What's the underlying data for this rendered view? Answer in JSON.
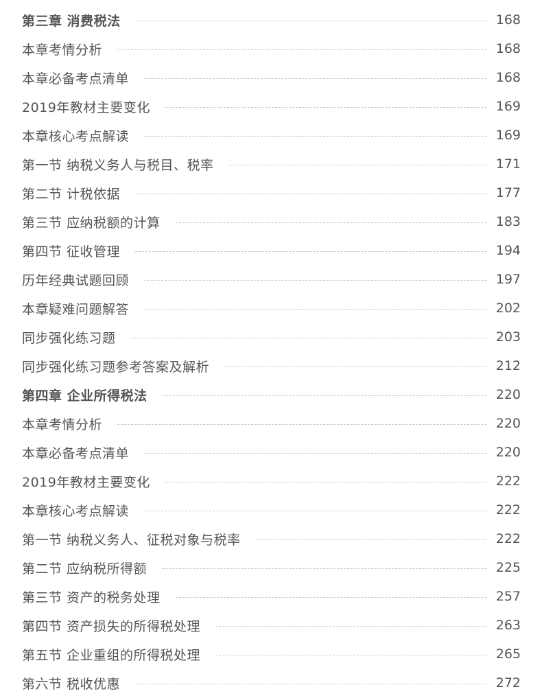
{
  "entries": [
    {
      "title": "第三章  消费税法",
      "page": "168",
      "chapter": true
    },
    {
      "title": "本章考情分析",
      "page": "168"
    },
    {
      "title": "本章必备考点清单",
      "page": "168"
    },
    {
      "title": "2019年教材主要变化",
      "page": "169"
    },
    {
      "title": "本章核心考点解读",
      "page": "169"
    },
    {
      "title": "第一节 纳税义务人与税目、税率",
      "page": "171"
    },
    {
      "title": "第二节 计税依据",
      "page": "177"
    },
    {
      "title": "第三节 应纳税额的计算",
      "page": "183"
    },
    {
      "title": "第四节 征收管理",
      "page": "194"
    },
    {
      "title": "历年经典试题回顾",
      "page": "197"
    },
    {
      "title": "本章疑难问题解答",
      "page": "202"
    },
    {
      "title": "同步强化练习题",
      "page": "203"
    },
    {
      "title": "同步强化练习题参考答案及解析",
      "page": "212"
    },
    {
      "title": "第四章  企业所得税法",
      "page": "220",
      "chapter": true
    },
    {
      "title": "本章考情分析",
      "page": "220"
    },
    {
      "title": "本章必备考点清单",
      "page": "220"
    },
    {
      "title": "2019年教材主要变化",
      "page": "222"
    },
    {
      "title": "本章核心考点解读",
      "page": "222"
    },
    {
      "title": "第一节 纳税义务人、征税对象与税率",
      "page": "222"
    },
    {
      "title": "第二节 应纳税所得额",
      "page": "225"
    },
    {
      "title": "第三节 资产的税务处理",
      "page": "257"
    },
    {
      "title": "第四节 资产损失的所得税处理",
      "page": "263"
    },
    {
      "title": "第五节 企业重组的所得税处理",
      "page": "265"
    },
    {
      "title": "第六节 税收优惠",
      "page": "272"
    }
  ]
}
